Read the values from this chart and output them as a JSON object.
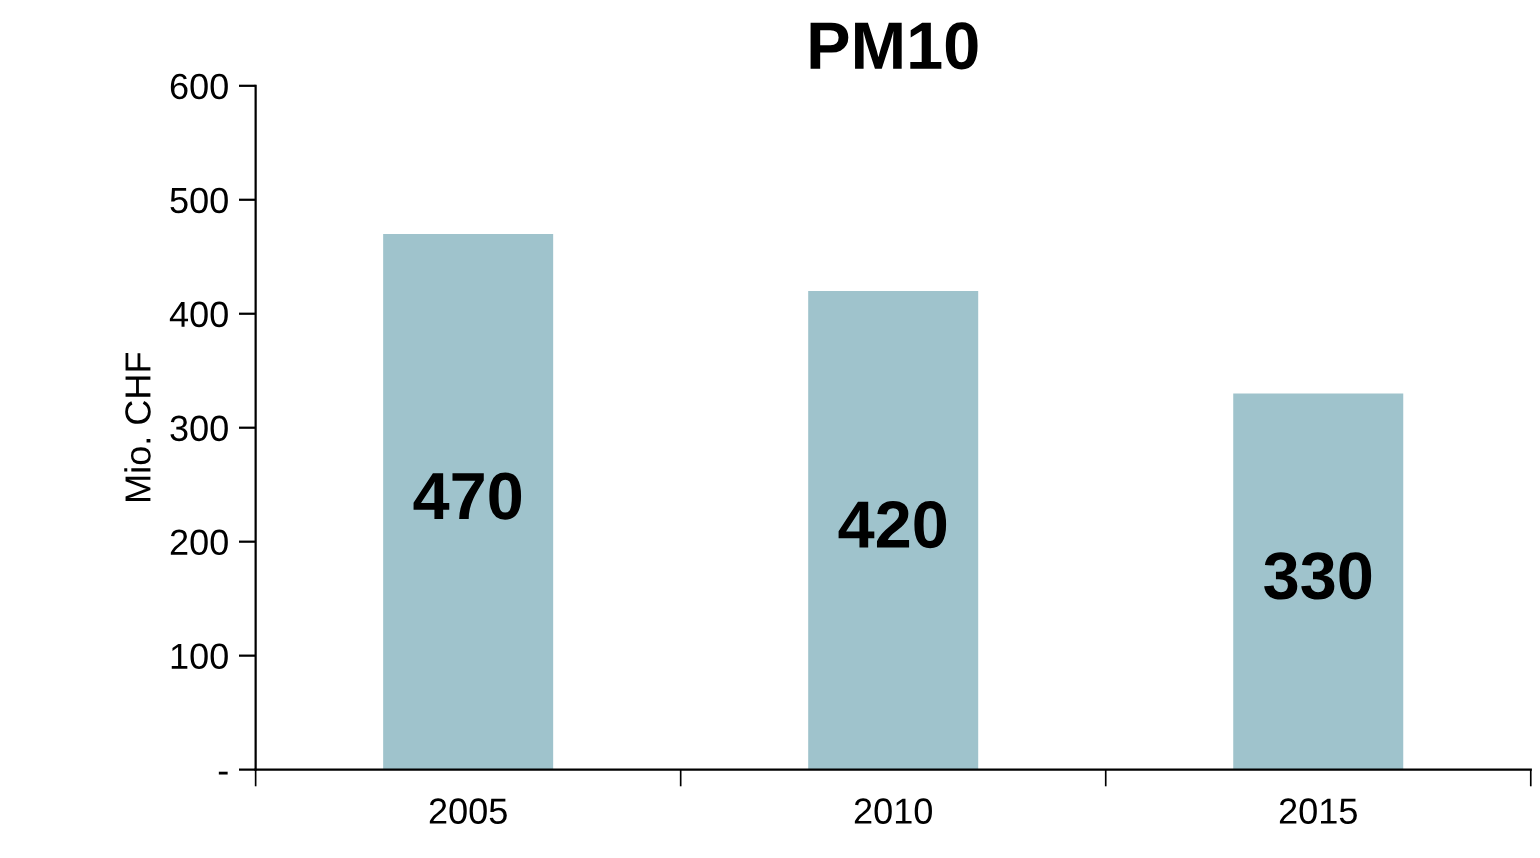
{
  "chart_data": {
    "type": "bar",
    "title": "PM10",
    "ylabel": "Mio. CHF",
    "categories": [
      "2005",
      "2010",
      "2015"
    ],
    "values": [
      470,
      420,
      330
    ],
    "color": "#9fc3cc",
    "ylim": [
      0,
      600
    ],
    "yticks": [
      {
        "value": 0,
        "label": "-"
      },
      100,
      200,
      300,
      400,
      500,
      600
    ],
    "data_labels": true,
    "grid": false,
    "legend": false
  }
}
